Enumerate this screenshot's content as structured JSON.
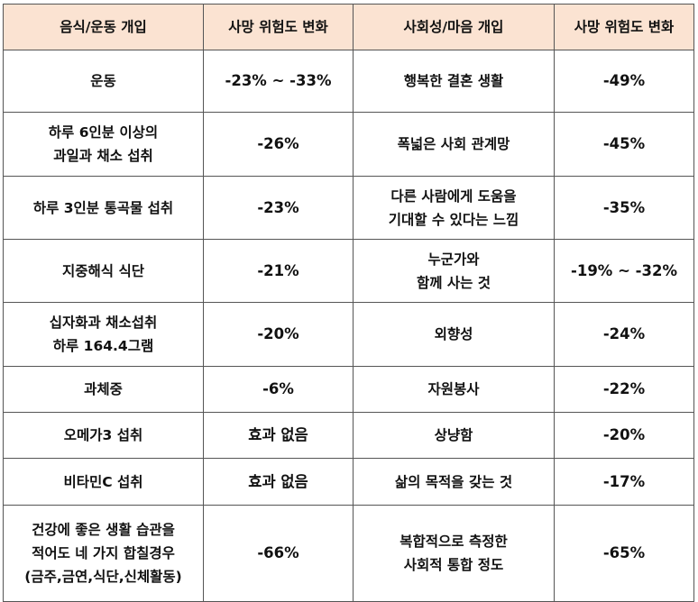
{
  "headers": [
    "음식/운동 개입",
    "사망 위험도 변화",
    "사회성/마음 개입",
    "사망 위험도 변화"
  ],
  "rows": [
    {
      "food": "운동",
      "food_change": "-23% ~ -33%",
      "social": "행복한 결혼 생활",
      "social_change": "-49%"
    },
    {
      "food": "하루 6인분 이상의\n과일과 채소 섭취",
      "food_change": "-26%",
      "social": "폭넓은 사회 관계망",
      "social_change": "-45%"
    },
    {
      "food": "하루 3인분 통곡물 섭취",
      "food_change": "-23%",
      "social": "다른 사람에게 도움을\n기대할 수 있다는 느낌",
      "social_change": "-35%"
    },
    {
      "food": "지중해식 식단",
      "food_change": "-21%",
      "social": "누군가와\n함께 사는 것",
      "social_change": "-19% ~ -32%"
    },
    {
      "food": "십자화과 채소섭취\n하루 164.4그램",
      "food_change": "-20%",
      "social": "외향성",
      "social_change": "-24%"
    },
    {
      "food": "과체중",
      "food_change": "-6%",
      "social": "자원봉사",
      "social_change": "-22%"
    },
    {
      "food": "오메가3 섭취",
      "food_change": "효과 없음",
      "social": "상냥함",
      "social_change": "-20%"
    },
    {
      "food": "비타민C 섭취",
      "food_change": "효과 없음",
      "social": "삶의 목적을 갖는 것",
      "social_change": "-17%"
    },
    {
      "food": "건강에 좋은 생활 습관을\n적어도 네 가지 합칠경우\n(금주,금연,식단,신체활동)",
      "food_change": "-66%",
      "social": "복합적으로 측정한\n사회적 통합 정도",
      "social_change": "-65%"
    }
  ],
  "colors": {
    "header_bg": "#fbe3d2",
    "border": "#555555"
  }
}
